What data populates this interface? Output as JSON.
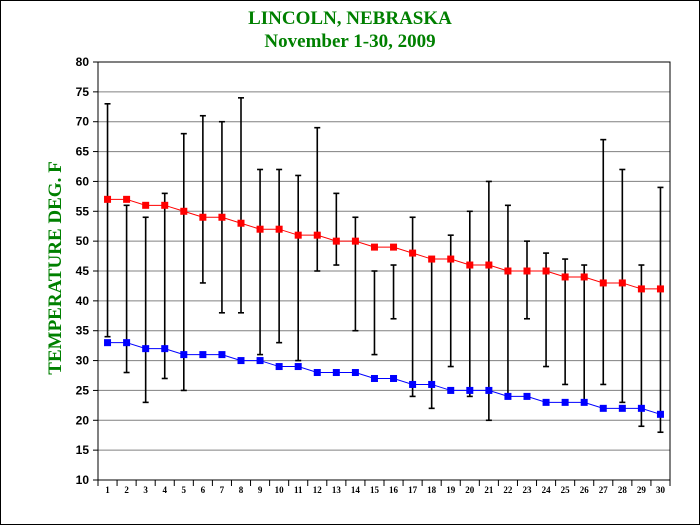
{
  "chart_data": {
    "type": "line",
    "title": "LINCOLN, NEBRASKA",
    "subtitle": "November 1-30, 2009",
    "ylabel": "TEMPERATURE DEG. F",
    "xlabel": "",
    "ylim": [
      10,
      80
    ],
    "yticks": [
      10,
      15,
      20,
      25,
      30,
      35,
      40,
      45,
      50,
      55,
      60,
      65,
      70,
      75,
      80
    ],
    "x": [
      1,
      2,
      3,
      4,
      5,
      6,
      7,
      8,
      9,
      10,
      11,
      12,
      13,
      14,
      15,
      16,
      17,
      18,
      19,
      20,
      21,
      22,
      23,
      24,
      25,
      26,
      27,
      28,
      29,
      30
    ],
    "grid": "horizontal",
    "series": [
      {
        "color": "#ff0000",
        "values": [
          57,
          57,
          56,
          56,
          55,
          54,
          54,
          53,
          52,
          52,
          51,
          51,
          50,
          50,
          49,
          49,
          48,
          47,
          47,
          46,
          46,
          45,
          45,
          45,
          44,
          44,
          43,
          43,
          42,
          42
        ]
      },
      {
        "color": "#0000ff",
        "values": [
          33,
          33,
          32,
          32,
          31,
          31,
          31,
          30,
          30,
          29,
          29,
          28,
          28,
          28,
          27,
          27,
          26,
          26,
          25,
          25,
          25,
          24,
          24,
          23,
          23,
          23,
          22,
          22,
          22,
          21
        ]
      }
    ],
    "ranges": {
      "color": "#000000",
      "high": [
        73,
        56,
        54,
        58,
        68,
        71,
        70,
        74,
        62,
        62,
        61,
        69,
        58,
        54,
        45,
        46,
        54,
        47,
        51,
        55,
        60,
        56,
        50,
        48,
        47,
        46,
        67,
        62,
        46,
        59
      ],
      "low": [
        34,
        28,
        23,
        27,
        25,
        43,
        38,
        38,
        31,
        33,
        30,
        45,
        46,
        35,
        31,
        37,
        24,
        22,
        29,
        24,
        20,
        24,
        37,
        29,
        26,
        23,
        26,
        23,
        19,
        18
      ]
    }
  }
}
